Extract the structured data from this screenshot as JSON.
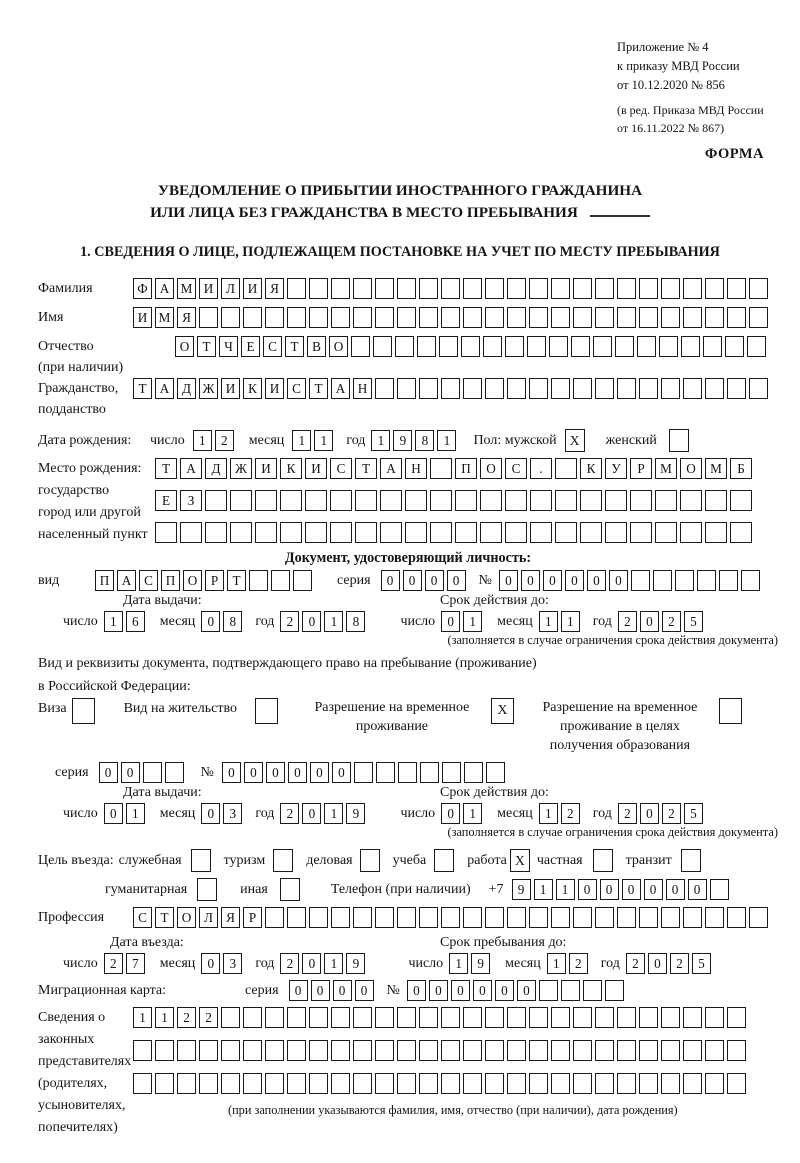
{
  "colors": {
    "background": "#ffffff",
    "text": "#141414",
    "cell_border": "#1a1a1a"
  },
  "header": {
    "ref_main": "Приложение № 4\nк приказу МВД России\nот 10.12.2020 № 856",
    "ref_amend": "(в ред. Приказа МВД России\nот 16.11.2022 № 867)",
    "form_word": "ФОРМА"
  },
  "title": {
    "line1": "УВЕДОМЛЕНИЕ О ПРИБЫТИИ ИНОСТРАННОГО ГРАЖДАНИНА",
    "line2": "ИЛИ ЛИЦА БЕЗ ГРАЖДАНСТВА В МЕСТО ПРЕБЫВАНИЯ"
  },
  "section1": {
    "heading": "1. СВЕДЕНИЯ О ЛИЦЕ, ПОДЛЕЖАЩЕМ ПОСТАНОВКЕ НА УЧЕТ ПО МЕСТУ ПРЕБЫВАНИЯ"
  },
  "labels": {
    "surname": "Фамилия",
    "name": "Имя",
    "patronymic": "Отчество\n(при наличии)",
    "citizenship": "Гражданство,\nподданство",
    "birth_date": "Дата рождения:",
    "day": "число",
    "month": "месяц",
    "year": "год",
    "sex_male": "Пол: мужской",
    "sex_female": "женский",
    "birth_place": "Место рождения:\nгосударство\nгород или другой\nнаселенный пункт",
    "identity_doc": "Документ, удостоверяющий личность:",
    "doc_kind": "вид",
    "series": "серия",
    "number": "№",
    "issue_date": "Дата выдачи:",
    "expiry_date": "Срок действия до:",
    "expiry_note": "(заполняется в случае ограничения срока действия документа)",
    "residence_doc_line1": "Вид и реквизиты документа, подтверждающего право на пребывание (проживание)",
    "residence_doc_line2": "в Российской Федерации:",
    "visa": "Виза",
    "residence_permit": "Вид на жительство",
    "temp_residence": "Разрешение на временное\nпроживание",
    "temp_residence_edu": "Разрешение на временное\nпроживание в целях\nполучения образования",
    "entry_purpose": "Цель въезда:",
    "official": "служебная",
    "tourism": "туризм",
    "business": "деловая",
    "study": "учеба",
    "work": "работа",
    "private": "частная",
    "transit": "транзит",
    "humanitarian": "гуманитарная",
    "other": "иная",
    "phone": "Телефон (при наличии)",
    "phone_prefix": "+7",
    "profession": "Профессия",
    "entry_date": "Дата въезда:",
    "stay_until": "Срок пребывания до:",
    "migration_card": "Миграционная карта:",
    "legal_reps": "Сведения о\nзаконных\nпредставителях\n(родителях,\nусыновителях,\nпопечителях)",
    "legal_reps_note": "(при заполнении указываются фамилия, имя, отчество (при наличии), дата рождения)"
  },
  "cells": {
    "surname": {
      "chars": "ФАМИЛИЯ",
      "total": 29
    },
    "name": {
      "chars": "ИМЯ",
      "total": 29
    },
    "patronymic": {
      "chars": "ОТЧЕСТВО",
      "total": 27
    },
    "citizenship": {
      "chars": "ТАДЖИКИСТАН",
      "total": 29
    },
    "birth_day": {
      "chars": "12",
      "total": 2
    },
    "birth_month": {
      "chars": "11",
      "total": 2
    },
    "birth_year": {
      "chars": "1981",
      "total": 4
    },
    "male_box": {
      "chars": "X",
      "total": 1
    },
    "female_box": {
      "chars": "",
      "total": 1
    },
    "birth_place_1": {
      "chars": "ТАДЖИКИСТАН ПОС. КУРМОМБ",
      "total": 24
    },
    "birth_place_2": {
      "chars": "ЕЗ",
      "total": 24
    },
    "birth_place_3": {
      "chars": "",
      "total": 24
    },
    "doc_kind": {
      "chars": "ПАСПОРТ",
      "total": 10
    },
    "doc_series": {
      "chars": "0000",
      "total": 4
    },
    "doc_number": {
      "chars": "000000",
      "total": 12
    },
    "doc_issue_day": {
      "chars": "16",
      "total": 2
    },
    "doc_issue_month": {
      "chars": "08",
      "total": 2
    },
    "doc_issue_year": {
      "chars": "2018",
      "total": 4
    },
    "doc_exp_day": {
      "chars": "01",
      "total": 2
    },
    "doc_exp_month": {
      "chars": "11",
      "total": 2
    },
    "doc_exp_year": {
      "chars": "2025",
      "total": 4
    },
    "visa_box": {
      "chars": "",
      "total": 1
    },
    "residence_permit_box": {
      "chars": "",
      "total": 1
    },
    "temp_residence_box": {
      "chars": "X",
      "total": 1
    },
    "temp_residence_edu_box": {
      "chars": "",
      "total": 1
    },
    "res_series": {
      "chars": "00",
      "total": 4
    },
    "res_number": {
      "chars": "000000",
      "total": 13
    },
    "res_issue_day": {
      "chars": "01",
      "total": 2
    },
    "res_issue_month": {
      "chars": "03",
      "total": 2
    },
    "res_issue_year": {
      "chars": "2019",
      "total": 4
    },
    "res_exp_day": {
      "chars": "01",
      "total": 2
    },
    "res_exp_month": {
      "chars": "12",
      "total": 2
    },
    "res_exp_year": {
      "chars": "2025",
      "total": 4
    },
    "official_box": {
      "chars": "",
      "total": 1
    },
    "tourism_box": {
      "chars": "",
      "total": 1
    },
    "business_box": {
      "chars": "",
      "total": 1
    },
    "study_box": {
      "chars": "",
      "total": 1
    },
    "work_box": {
      "chars": "X",
      "total": 1
    },
    "private_box": {
      "chars": "",
      "total": 1
    },
    "transit_box": {
      "chars": "",
      "total": 1
    },
    "humanitarian_box": {
      "chars": "",
      "total": 1
    },
    "other_box": {
      "chars": "",
      "total": 1
    },
    "phone": {
      "chars": "911000000",
      "total": 10
    },
    "profession": {
      "chars": "СТОЛЯР",
      "total": 29
    },
    "entry_day": {
      "chars": "27",
      "total": 2
    },
    "entry_month": {
      "chars": "03",
      "total": 2
    },
    "entry_year": {
      "chars": "2019",
      "total": 4
    },
    "stay_day": {
      "chars": "19",
      "total": 2
    },
    "stay_month": {
      "chars": "12",
      "total": 2
    },
    "stay_year": {
      "chars": "2025",
      "total": 4
    },
    "mig_series": {
      "chars": "0000",
      "total": 4
    },
    "mig_number": {
      "chars": "000000",
      "total": 10
    },
    "legal_1": {
      "chars": "1122",
      "total": 28
    },
    "legal_2": {
      "chars": "",
      "total": 28
    },
    "legal_3": {
      "chars": "",
      "total": 28
    }
  }
}
